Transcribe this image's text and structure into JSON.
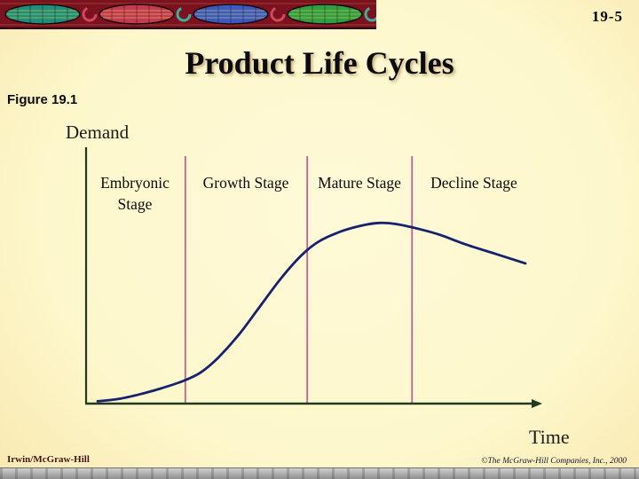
{
  "slide": {
    "number": "19-5",
    "title": "Product Life Cycles",
    "figure_label": "Figure 19.1",
    "footer_left": "Irwin/McGraw-Hill",
    "footer_right": "©The McGraw-Hill Companies, Inc., 2000"
  },
  "chart_data": {
    "type": "line",
    "title": "Product Life Cycles",
    "xlabel": "Time",
    "ylabel": "Demand",
    "x_range": [
      0,
      100
    ],
    "y_range": [
      0,
      100
    ],
    "grid": false,
    "legend": "none",
    "stages": [
      "Embryonic Stage",
      "Growth Stage",
      "Mature Stage",
      "Decline Stage"
    ],
    "stage_boundaries_x": [
      20.5,
      49,
      73.5
    ],
    "series": [
      {
        "name": "Demand",
        "points": [
          [
            0,
            1
          ],
          [
            5,
            2
          ],
          [
            10,
            4
          ],
          [
            15,
            6.5
          ],
          [
            20,
            9.5
          ],
          [
            24,
            13
          ],
          [
            28,
            19
          ],
          [
            33,
            29
          ],
          [
            38,
            41
          ],
          [
            43,
            53
          ],
          [
            48,
            63
          ],
          [
            52,
            68.5
          ],
          [
            57,
            72.5
          ],
          [
            62,
            75
          ],
          [
            66,
            76
          ],
          [
            70,
            75.5
          ],
          [
            75,
            73.5
          ],
          [
            80,
            71
          ],
          [
            86,
            67
          ],
          [
            93,
            63
          ],
          [
            100,
            59
          ]
        ]
      }
    ],
    "colors": {
      "curve": "#16226e",
      "stage_divider": "#c06090",
      "axis": "#22381f"
    }
  },
  "theme": {
    "background_center": "#fdf8cf",
    "background_edge": "#e09038",
    "banner_background": "#7c1220",
    "bottom_bar": "#9a9a9a"
  }
}
